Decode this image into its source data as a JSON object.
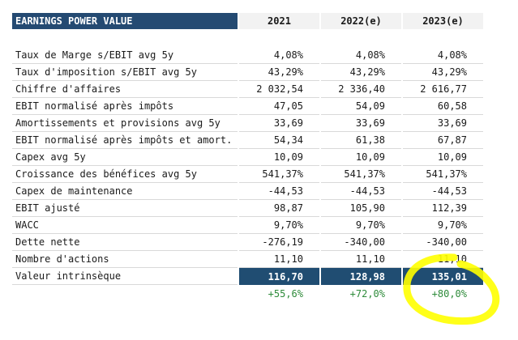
{
  "title": "EARNINGS POWER VALUE",
  "columns": [
    "2021",
    "2022(e)",
    "2023(e)"
  ],
  "rows": [
    {
      "label": "Taux de Marge s/EBIT avg 5y",
      "values": [
        "4,08%",
        "4,08%",
        "4,08%"
      ]
    },
    {
      "label": "Taux d'imposition s/EBIT avg 5y",
      "values": [
        "43,29%",
        "43,29%",
        "43,29%"
      ]
    },
    {
      "label": "Chiffre d'affaires",
      "values": [
        "2 032,54",
        "2 336,40",
        "2 616,77"
      ]
    },
    {
      "label": "EBIT normalisé après impôts",
      "values": [
        "47,05",
        "54,09",
        "60,58"
      ]
    },
    {
      "label": "Amortissements et provisions avg 5y",
      "values": [
        "33,69",
        "33,69",
        "33,69"
      ]
    },
    {
      "label": "EBIT normalisé après impôts et amort.",
      "values": [
        "54,34",
        "61,38",
        "67,87"
      ]
    },
    {
      "label": "Capex avg 5y",
      "values": [
        "10,09",
        "10,09",
        "10,09"
      ]
    },
    {
      "label": "Croissance des bénéfices avg 5y",
      "values": [
        "541,37%",
        "541,37%",
        "541,37%"
      ]
    },
    {
      "label": "Capex de maintenance",
      "values": [
        "-44,53",
        "-44,53",
        "-44,53"
      ]
    },
    {
      "label": "EBIT ajusté",
      "values": [
        "98,87",
        "105,90",
        "112,39"
      ]
    },
    {
      "label": "WACC",
      "values": [
        "9,70%",
        "9,70%",
        "9,70%"
      ]
    },
    {
      "label": "Dette nette",
      "values": [
        "-276,19",
        "-340,00",
        "-340,00"
      ]
    },
    {
      "label": "Nombre d'actions",
      "values": [
        "11,10",
        "11,10",
        "11,10"
      ]
    }
  ],
  "total": {
    "label": "Valeur intrinsèque",
    "values": [
      "116,70",
      "128,98",
      "135,01"
    ]
  },
  "upside": [
    "+55,6%",
    "+72,0%",
    "+80,0%"
  ],
  "colors": {
    "header_bg": "#244a72",
    "total_bg": "#204d72",
    "positive": "#2e8b3a",
    "highlight": "#ffff00"
  }
}
